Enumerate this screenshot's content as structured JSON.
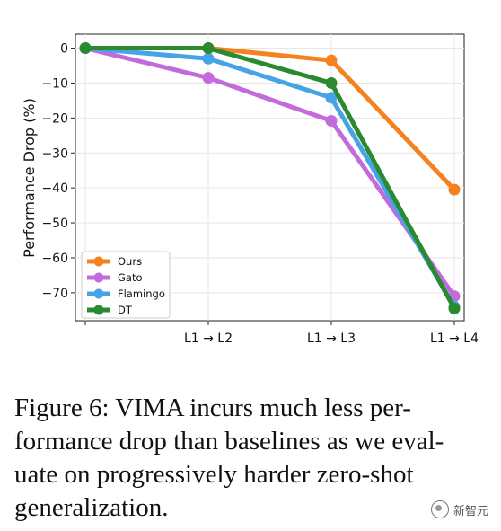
{
  "chart_data": {
    "type": "line",
    "title": "",
    "xlabel": "",
    "ylabel": "Performance Drop (%)",
    "categories": [
      "",
      "L1 → L2",
      "L1 → L3",
      "L1 → L4"
    ],
    "ylim": [
      -78,
      4
    ],
    "yticks": [
      0,
      -10,
      -20,
      -30,
      -40,
      -50,
      -60,
      -70
    ],
    "ytick_labels": [
      "0",
      "−10",
      "−20",
      "−30",
      "−40",
      "−50",
      "−60",
      "−70"
    ],
    "grid": true,
    "legend_position": "lower-left",
    "series": [
      {
        "name": "Ours",
        "color": "#f5821f",
        "values": [
          0,
          0,
          -3.5,
          -40.5
        ]
      },
      {
        "name": "Gato",
        "color": "#c46bdc",
        "values": [
          0,
          -8.5,
          -20.8,
          -71
        ]
      },
      {
        "name": "Flamingo",
        "color": "#45a3e6",
        "values": [
          0,
          -3,
          -14.2,
          -74
        ]
      },
      {
        "name": "DT",
        "color": "#2a8a30",
        "values": [
          0,
          0,
          -10,
          -74.5
        ]
      }
    ]
  },
  "caption": {
    "lines": [
      "Figure 6: VIMA incurs much less per-",
      "formance drop than baselines as we eval-",
      "uate on progressively harder zero-shot",
      "generalization."
    ]
  },
  "watermark": {
    "text": "新智元"
  }
}
